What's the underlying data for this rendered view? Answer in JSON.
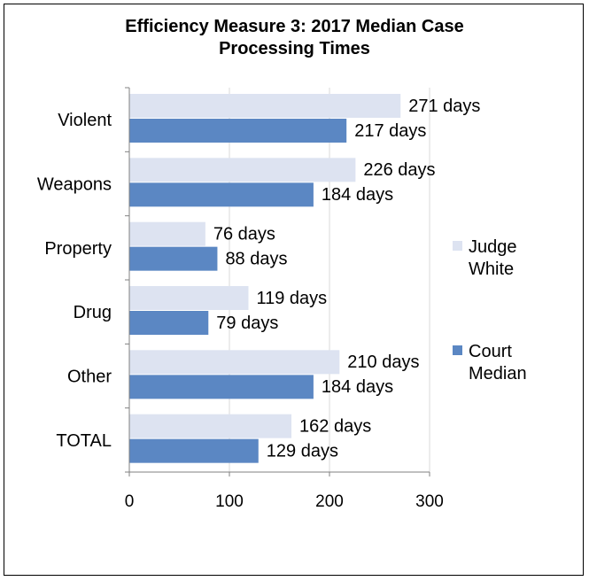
{
  "chart_data": {
    "type": "bar",
    "orientation": "horizontal",
    "title_lines": [
      "Efficiency Measure 3: 2017 Median Case",
      "Processing Times"
    ],
    "categories": [
      "Violent",
      "Weapons",
      "Property",
      "Drug",
      "Other",
      "TOTAL"
    ],
    "series": [
      {
        "name_lines": [
          "Judge",
          "White"
        ],
        "color": "#DDE3F1",
        "values": [
          271,
          226,
          76,
          119,
          210,
          162
        ],
        "labels": [
          "271 days",
          "226 days",
          "76 days",
          "119 days",
          "210 days",
          "162 days"
        ]
      },
      {
        "name_lines": [
          "Court",
          "Median"
        ],
        "color": "#5B87C3",
        "values": [
          217,
          184,
          88,
          79,
          184,
          129
        ],
        "labels": [
          "217 days",
          "184 days",
          "88 days",
          "79 days",
          "184 days",
          "129 days"
        ]
      }
    ],
    "xlim": [
      0,
      300
    ],
    "xticks": [
      0,
      100,
      200,
      300
    ],
    "xtick_labels": [
      "0",
      "100",
      "200",
      "300"
    ],
    "grid": true,
    "legend": "right"
  }
}
